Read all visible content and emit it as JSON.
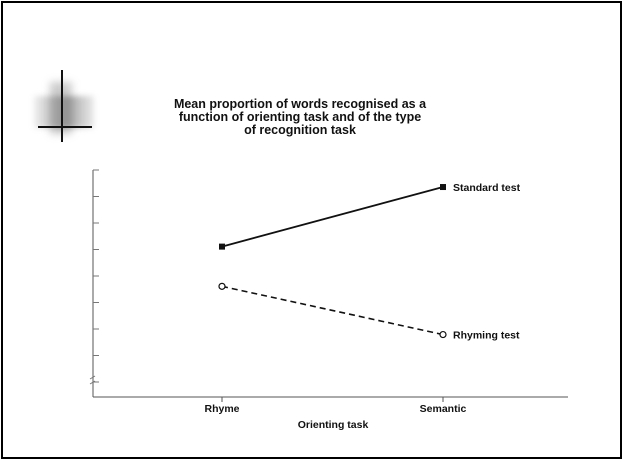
{
  "chart_data": {
    "type": "line",
    "title": "Mean proportion of words recognised as a\nfunction of orienting task and of the type\nof recognition task",
    "xlabel": "Orienting task",
    "ylabel": "",
    "categories": [
      "Rhyme",
      "Semantic"
    ],
    "y_tick_count": 9,
    "y_tick_labels": [],
    "grid": false,
    "legend": "direct labels at line ends",
    "series": [
      {
        "name": "Standard test",
        "values": [
          0.53,
          0.74
        ],
        "line_style": "solid",
        "marker": "filled-square",
        "color": "#111111"
      },
      {
        "name": "Rhyming test",
        "values": [
          0.39,
          0.22
        ],
        "line_style": "dashed",
        "marker": "open-circle",
        "color": "#111111"
      }
    ]
  }
}
